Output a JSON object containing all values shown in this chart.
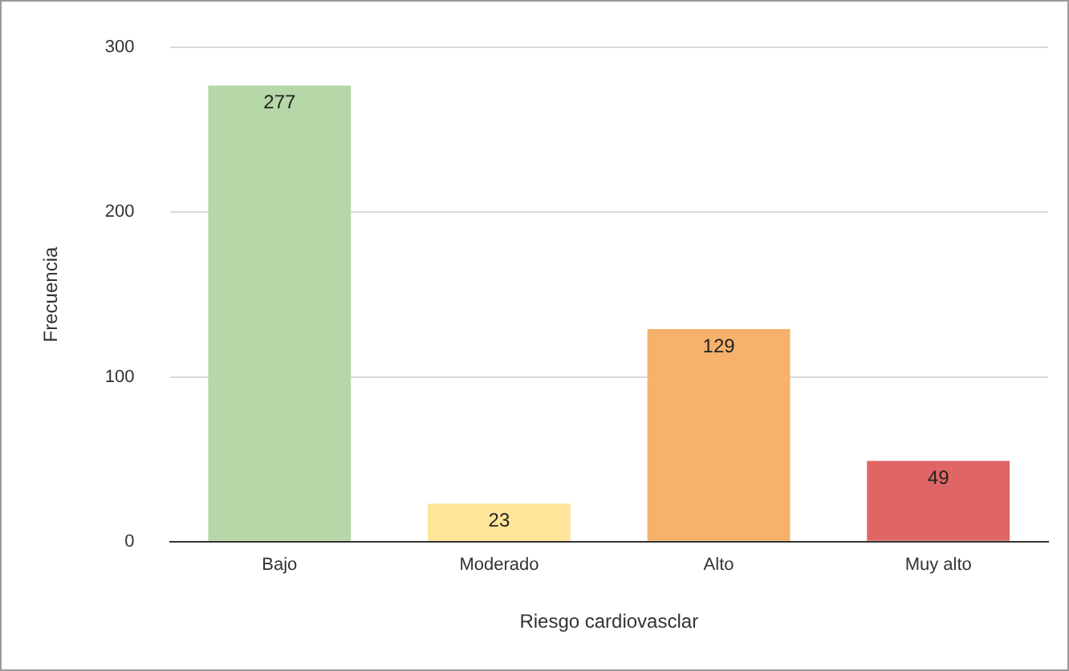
{
  "chart_data": {
    "type": "bar",
    "xlabel": "Riesgo cardiovasclar",
    "ylabel": "Frecuencia",
    "categories": [
      "Bajo",
      "Moderado",
      "Alto",
      "Muy alto"
    ],
    "values": [
      277,
      23,
      129,
      49
    ],
    "colors": [
      "#b6d7a8",
      "#ffe599",
      "#f6b26b",
      "#e06666"
    ],
    "ylim": [
      0,
      300
    ],
    "yticks": [
      0,
      100,
      200,
      300
    ],
    "grid": "y",
    "data_labels": true
  }
}
